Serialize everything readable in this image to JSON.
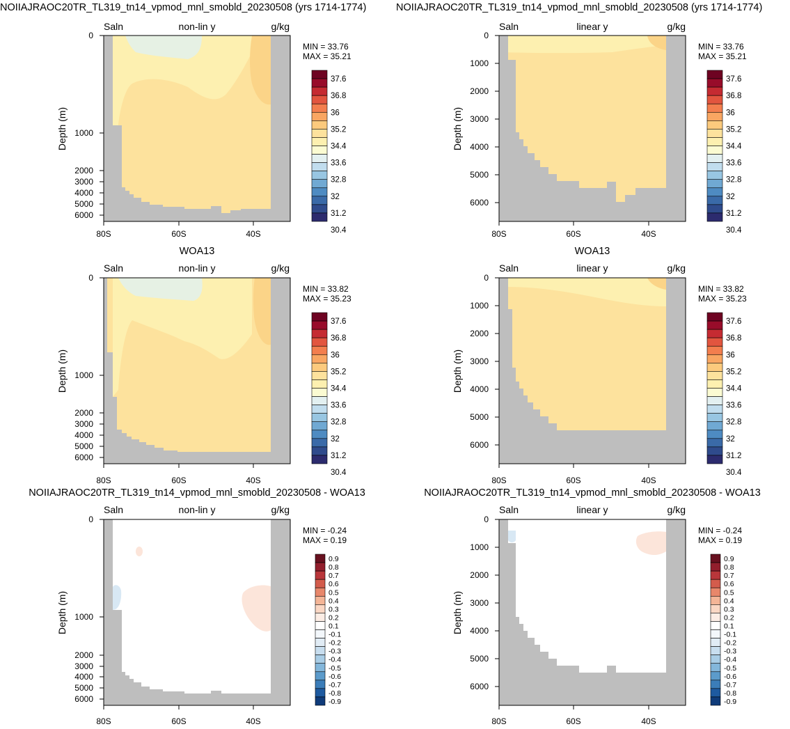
{
  "row_titles": [
    "NOIIAJRAOC20TR_TL319_tn14_vpmod_mnl_smobld_20230508 (yrs 1714-1774)",
    "WOA13",
    "NOIIAJRAOC20TR_TL319_tn14_vpmod_mnl_smobld_20230508 - WOA13"
  ],
  "colors": {
    "land": "#bebebe",
    "salinity_scale": [
      "#2c2b6e",
      "#2f4b8c",
      "#3a6aa8",
      "#4e8bc2",
      "#70a9d3",
      "#98c6e2",
      "#c1ddee",
      "#e3f0f1",
      "#fbfbd2",
      "#fdf0b0",
      "#fde29d",
      "#fcca7d",
      "#f9a662",
      "#f37e4e",
      "#e2553f",
      "#c52b32",
      "#980c2a",
      "#6e0322"
    ],
    "difference_scale": [
      "#0f3b7a",
      "#1e5aa0",
      "#3b7db9",
      "#5c9bcb",
      "#83b7db",
      "#a9cde6",
      "#c8deef",
      "#e1ecf5",
      "#f3f7fb",
      "#ffffff",
      "#fcede5",
      "#fad7c4",
      "#f4b597",
      "#e8876b",
      "#d35c4c",
      "#b9363a",
      "#921e2c",
      "#68101f"
    ]
  },
  "chart_data": [
    {
      "type": "heatmap",
      "panel": "model-nonlinear",
      "left_label": "Saln",
      "center_label": "non-lin y",
      "right_label": "g/kg",
      "ylabel": "Depth (m)",
      "x_ticks": [
        "80S",
        "60S",
        "40S"
      ],
      "y_ticks": [
        "0",
        "1000",
        "2000",
        "3000",
        "4000",
        "5000",
        "6000"
      ],
      "y_scale": "non-linear",
      "stats": {
        "min": "MIN =  33.76",
        "max": "MAX =  35.21"
      },
      "colorbar_labels": [
        "37.6",
        "36.8",
        "36",
        "35.2",
        "34.4",
        "33.6",
        "32.8",
        "32",
        "31.2",
        "30.4"
      ],
      "fields": [
        {
          "value_range": [
            33.6,
            34.0
          ],
          "region": "near-surface 74S-59S"
        },
        {
          "value_range": [
            34.0,
            34.4
          ],
          "region": "upper ocean 79S-45S"
        },
        {
          "value_range": [
            34.4,
            34.8
          ],
          "region": "interior and deep ocean"
        },
        {
          "value_range": [
            34.8,
            35.2
          ],
          "region": "near 40S, 0-600 m"
        }
      ]
    },
    {
      "type": "heatmap",
      "panel": "model-linear",
      "left_label": "Saln",
      "center_label": "linear y",
      "right_label": "g/kg",
      "ylabel": "Depth (m)",
      "x_ticks": [
        "80S",
        "60S",
        "40S"
      ],
      "y_ticks": [
        "0",
        "1000",
        "2000",
        "3000",
        "4000",
        "5000",
        "6000"
      ],
      "y_scale": "linear",
      "stats": {
        "min": "MIN =  33.76",
        "max": "MAX =  35.21"
      },
      "colorbar_labels": [
        "37.6",
        "36.8",
        "36",
        "35.2",
        "34.4",
        "33.6",
        "32.8",
        "32",
        "31.2",
        "30.4"
      ],
      "fields": [
        {
          "value_range": [
            34.0,
            34.4
          ],
          "region": "top 300 m"
        },
        {
          "value_range": [
            34.4,
            34.8
          ],
          "region": "below 300 m"
        },
        {
          "value_range": [
            34.8,
            35.2
          ],
          "region": "near 40S surface"
        }
      ]
    },
    {
      "type": "heatmap",
      "panel": "obs-nonlinear",
      "left_label": "Saln",
      "center_label": "non-lin y",
      "right_label": "g/kg",
      "ylabel": "Depth (m)",
      "x_ticks": [
        "80S",
        "60S",
        "40S"
      ],
      "y_ticks": [
        "0",
        "1000",
        "2000",
        "3000",
        "4000",
        "5000",
        "6000"
      ],
      "y_scale": "non-linear",
      "stats": {
        "min": "MIN =  33.82",
        "max": "MAX =  35.23"
      },
      "colorbar_labels": [
        "37.6",
        "36.8",
        "36",
        "35.2",
        "34.4",
        "33.6",
        "32.8",
        "32",
        "31.2",
        "30.4"
      ],
      "fields": [
        {
          "value_range": [
            33.6,
            34.0
          ],
          "region": "near-surface 74S-60S"
        },
        {
          "value_range": [
            34.0,
            34.4
          ],
          "region": "upper ocean"
        },
        {
          "value_range": [
            34.4,
            34.8
          ],
          "region": "interior and deep ocean"
        },
        {
          "value_range": [
            34.8,
            35.2
          ],
          "region": "near 40S, 0-700 m"
        }
      ]
    },
    {
      "type": "heatmap",
      "panel": "obs-linear",
      "left_label": "Saln",
      "center_label": "linear y",
      "right_label": "g/kg",
      "ylabel": "Depth (m)",
      "x_ticks": [
        "80S",
        "60S",
        "40S"
      ],
      "y_ticks": [
        "0",
        "1000",
        "2000",
        "3000",
        "4000",
        "5000",
        "6000"
      ],
      "y_scale": "linear",
      "stats": {
        "min": "MIN =  33.82",
        "max": "MAX =  35.23"
      },
      "colorbar_labels": [
        "37.6",
        "36.8",
        "36",
        "35.2",
        "34.4",
        "33.6",
        "32.8",
        "32",
        "31.2",
        "30.4"
      ],
      "fields": [
        {
          "value_range": [
            34.0,
            34.4
          ],
          "region": "top 1000 m"
        },
        {
          "value_range": [
            34.4,
            34.8
          ],
          "region": "below 1000 m"
        },
        {
          "value_range": [
            34.8,
            35.2
          ],
          "region": "near 40S surface"
        }
      ]
    },
    {
      "type": "heatmap",
      "panel": "diff-nonlinear",
      "left_label": "Saln",
      "center_label": "non-lin y",
      "right_label": "g/kg",
      "ylabel": "Depth (m)",
      "x_ticks": [
        "80S",
        "60S",
        "40S"
      ],
      "y_ticks": [
        "0",
        "1000",
        "2000",
        "3000",
        "4000",
        "5000",
        "6000"
      ],
      "y_scale": "non-linear",
      "stats": {
        "min": "MIN =  -0.24",
        "max": "MAX =  0.19"
      },
      "colorbar_labels": [
        "0.9",
        "0.8",
        "0.7",
        "0.6",
        "0.5",
        "0.4",
        "0.3",
        "0.2",
        "0.1",
        "-0.1",
        "-0.2",
        "-0.3",
        "-0.4",
        "-0.5",
        "-0.6",
        "-0.7",
        "-0.8",
        "-0.9"
      ],
      "fields": [
        {
          "value_range": [
            -0.2,
            -0.1
          ],
          "region": "77S, 500-800 m"
        },
        {
          "value_range": [
            0.1,
            0.2
          ],
          "region": "71S, ~250 m"
        },
        {
          "value_range": [
            0.1,
            0.2
          ],
          "region": "38S, 450-800 m"
        }
      ]
    },
    {
      "type": "heatmap",
      "panel": "diff-linear",
      "left_label": "Saln",
      "center_label": "linear y",
      "right_label": "g/kg",
      "ylabel": "Depth (m)",
      "x_ticks": [
        "80S",
        "60S",
        "40S"
      ],
      "y_ticks": [
        "0",
        "1000",
        "2000",
        "3000",
        "4000",
        "5000",
        "6000"
      ],
      "y_scale": "linear",
      "stats": {
        "min": "MIN =  -0.24",
        "max": "MAX =  0.19"
      },
      "colorbar_labels": [
        "0.9",
        "0.8",
        "0.7",
        "0.6",
        "0.5",
        "0.4",
        "0.3",
        "0.2",
        "0.1",
        "-0.1",
        "-0.2",
        "-0.3",
        "-0.4",
        "-0.5",
        "-0.6",
        "-0.7",
        "-0.8",
        "-0.9"
      ],
      "fields": [
        {
          "value_range": [
            -0.2,
            -0.1
          ],
          "region": "77S, 0-800 m"
        },
        {
          "value_range": [
            0.1,
            0.2
          ],
          "region": "40S, 400-900 m"
        }
      ]
    }
  ]
}
